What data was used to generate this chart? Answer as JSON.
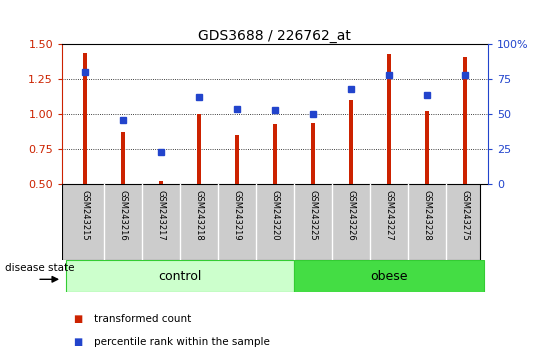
{
  "title": "GDS3688 / 226762_at",
  "samples": [
    "GSM243215",
    "GSM243216",
    "GSM243217",
    "GSM243218",
    "GSM243219",
    "GSM243220",
    "GSM243225",
    "GSM243226",
    "GSM243227",
    "GSM243228",
    "GSM243275"
  ],
  "transformed_count": [
    1.44,
    0.87,
    0.52,
    1.0,
    0.85,
    0.93,
    0.94,
    1.1,
    1.43,
    1.02,
    1.41
  ],
  "percentile_rank": [
    80,
    46,
    23,
    62,
    54,
    53,
    50,
    68,
    78,
    64,
    78
  ],
  "bar_color": "#cc2200",
  "dot_color": "#2244cc",
  "ylim_left": [
    0.5,
    1.5
  ],
  "ylim_right": [
    0,
    100
  ],
  "yticks_left": [
    0.5,
    0.75,
    1.0,
    1.25,
    1.5
  ],
  "yticks_right": [
    0,
    25,
    50,
    75,
    100
  ],
  "control_indices": [
    0,
    1,
    2,
    3,
    4,
    5
  ],
  "obese_indices": [
    6,
    7,
    8,
    9,
    10
  ],
  "control_label": "control",
  "obese_label": "obese",
  "disease_state_label": "disease state",
  "legend_red": "transformed count",
  "legend_blue": "percentile rank within the sample",
  "control_color": "#ccffcc",
  "obese_color": "#44dd44",
  "tick_area_color": "#cccccc",
  "bar_width": 0.12
}
